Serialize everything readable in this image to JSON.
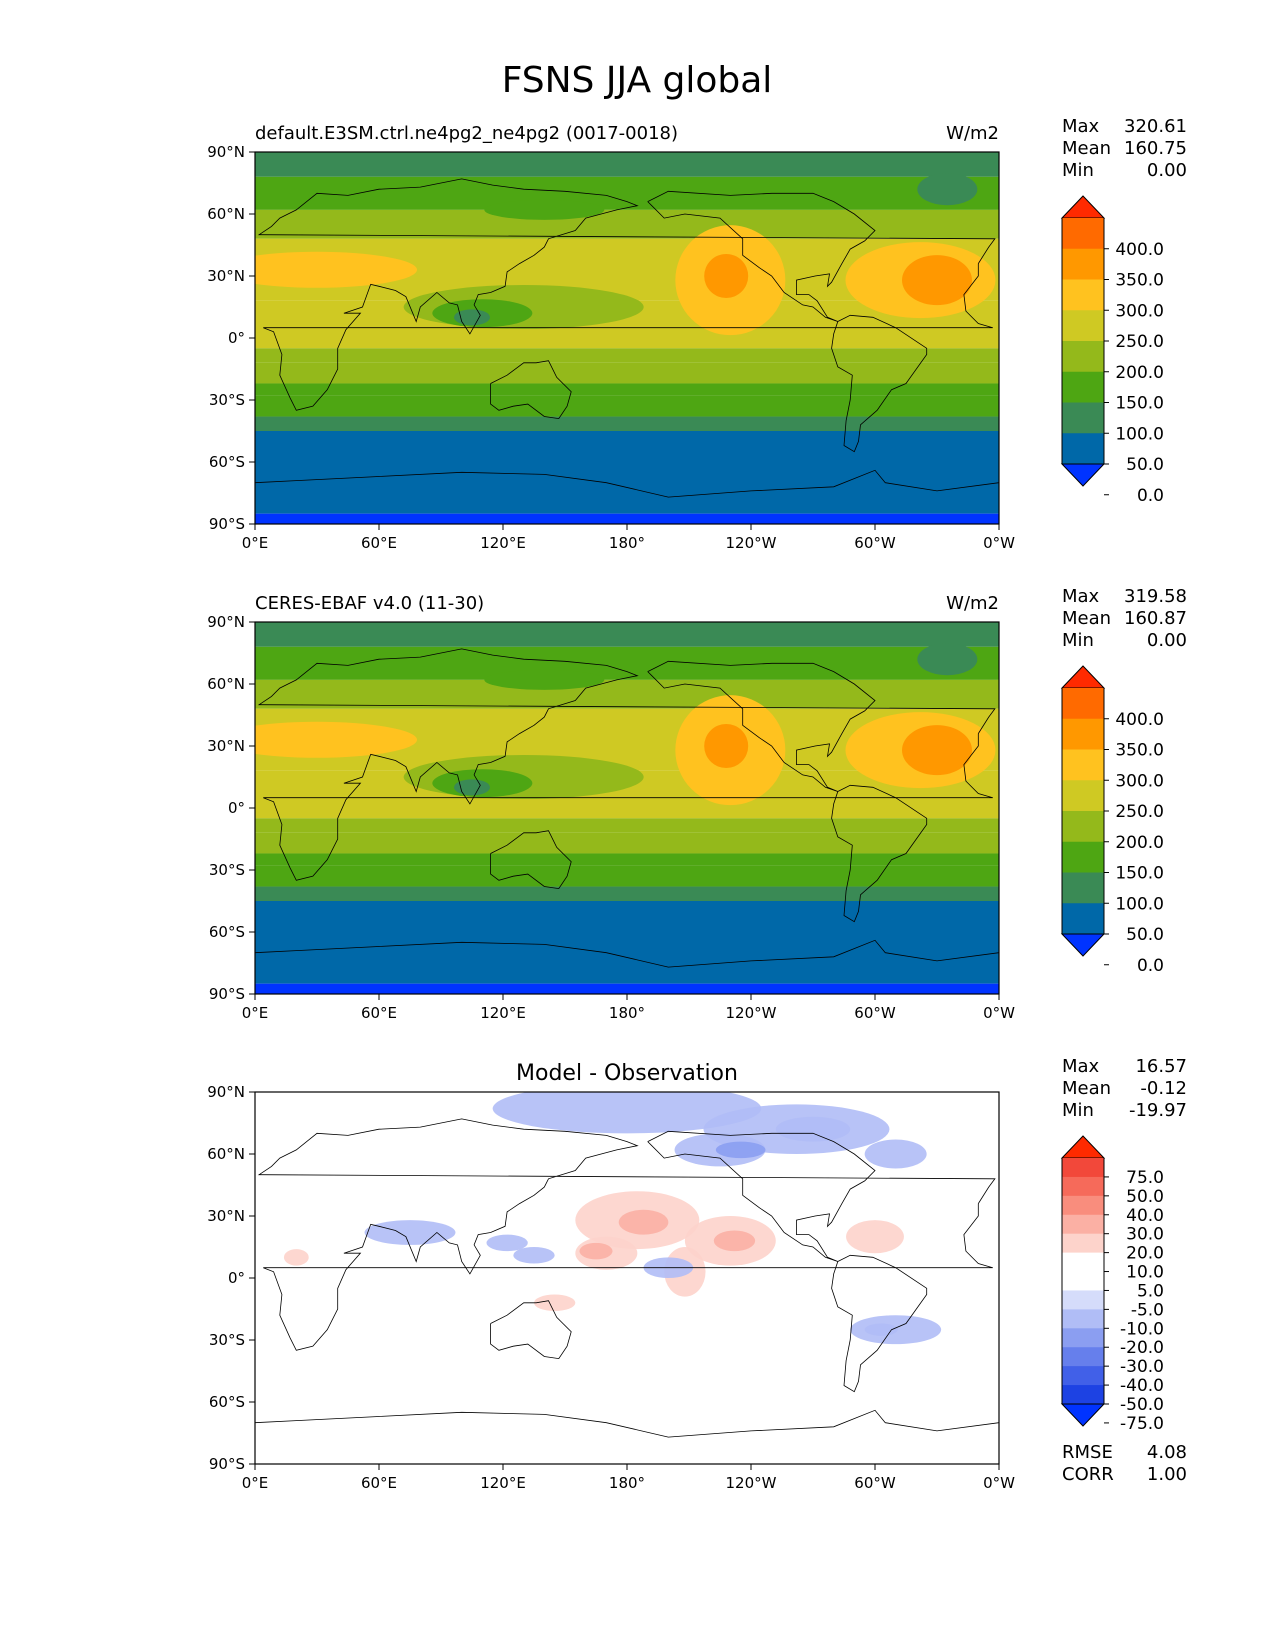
{
  "figure": {
    "title": "FSNS JJA global",
    "x_ticks": [
      "0°E",
      "60°E",
      "120°E",
      "180°",
      "120°W",
      "60°W",
      "0°W"
    ],
    "y_ticks": [
      "90°N",
      "60°N",
      "30°N",
      "0°",
      "30°S",
      "60°S",
      "90°S"
    ]
  },
  "chart_data": [
    {
      "type": "heatmap",
      "panel": "model",
      "title": "default.E3SM.ctrl.ne4pg2_ne4pg2 (0017-0018)",
      "units": "W/m2",
      "xlim": [
        0,
        360
      ],
      "ylim": [
        -90,
        90
      ],
      "stats": [
        {
          "label": "Max",
          "value": "320.61"
        },
        {
          "label": "Mean",
          "value": "160.75"
        },
        {
          "label": "Min",
          "value": "0.00"
        }
      ],
      "colorbar": {
        "extend": "both",
        "labels": [
          "400.0",
          "350.0",
          "300.0",
          "250.0",
          "200.0",
          "150.0",
          "100.0",
          "50.0",
          "0.0"
        ],
        "colors": [
          "#ff2a00",
          "#ff6a00",
          "#ff9800",
          "#ffc21f",
          "#cfc923",
          "#94b91b",
          "#4ea613",
          "#3a8a55",
          "#0068a8",
          "#0033ff"
        ]
      }
    },
    {
      "type": "heatmap",
      "panel": "observation",
      "title": "CERES-EBAF v4.0 (11-30)",
      "units": "W/m2",
      "xlim": [
        0,
        360
      ],
      "ylim": [
        -90,
        90
      ],
      "stats": [
        {
          "label": "Max",
          "value": "319.58"
        },
        {
          "label": "Mean",
          "value": "160.87"
        },
        {
          "label": "Min",
          "value": "0.00"
        }
      ],
      "colorbar": {
        "extend": "both",
        "labels": [
          "400.0",
          "350.0",
          "300.0",
          "250.0",
          "200.0",
          "150.0",
          "100.0",
          "50.0",
          "0.0"
        ],
        "colors": [
          "#ff2a00",
          "#ff6a00",
          "#ff9800",
          "#ffc21f",
          "#cfc923",
          "#94b91b",
          "#4ea613",
          "#3a8a55",
          "#0068a8",
          "#0033ff"
        ]
      }
    },
    {
      "type": "heatmap",
      "panel": "difference",
      "title": "Model - Observation",
      "units": "",
      "xlim": [
        0,
        360
      ],
      "ylim": [
        -90,
        90
      ],
      "stats": [
        {
          "label": "Max",
          "value": "16.57"
        },
        {
          "label": "Mean",
          "value": "-0.12"
        },
        {
          "label": "Min",
          "value": "-19.97"
        }
      ],
      "extra_stats": [
        {
          "label": "RMSE",
          "value": "4.08"
        },
        {
          "label": "CORR",
          "value": "1.00"
        }
      ],
      "colorbar": {
        "extend": "both",
        "labels": [
          "75.0",
          "50.0",
          "40.0",
          "30.0",
          "20.0",
          "10.0",
          "5.0",
          "-5.0",
          "-10.0",
          "-20.0",
          "-30.0",
          "-40.0",
          "-50.0",
          "-75.0"
        ],
        "colors": [
          "#ff2a00",
          "#f2483a",
          "#f66a5a",
          "#f98d7d",
          "#fbb0a4",
          "#fdd3cb",
          "#ffffff",
          "#ffffff",
          "#d5dcfa",
          "#b0bdf6",
          "#8b9ef1",
          "#667fec",
          "#4160e8",
          "#1d42e3",
          "#0033ff"
        ]
      }
    }
  ]
}
